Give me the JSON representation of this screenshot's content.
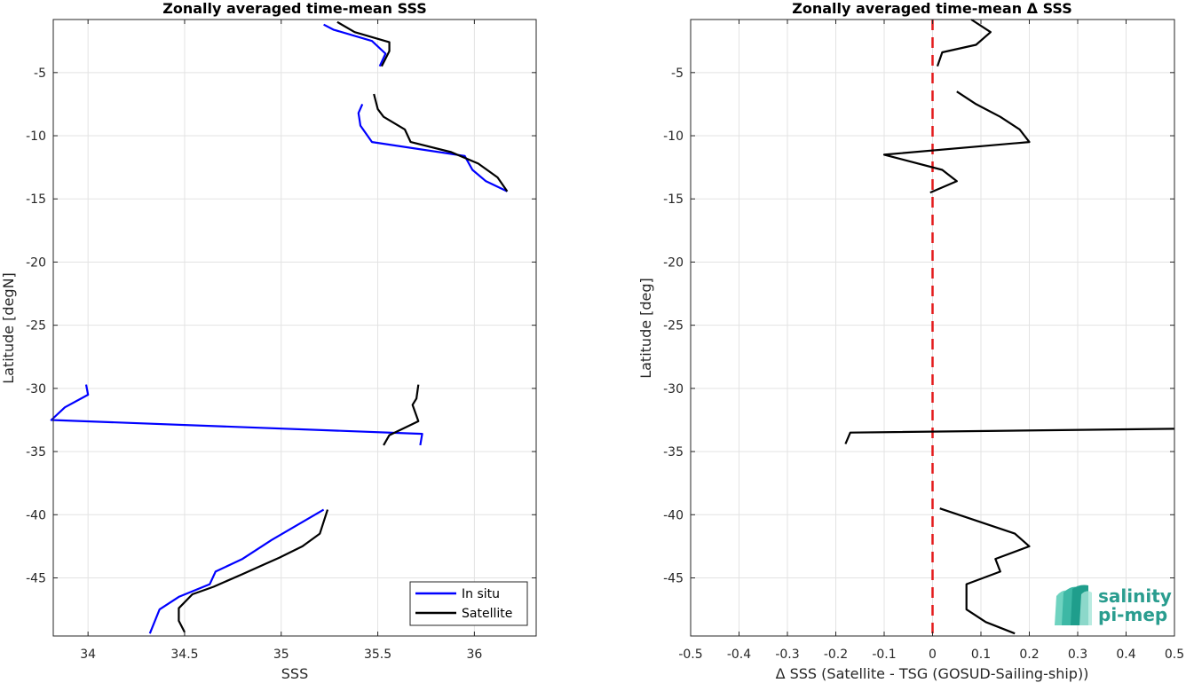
{
  "chart_data": [
    {
      "type": "line",
      "title": "Zonally averaged time-mean SSS",
      "xlabel": "SSS",
      "ylabel": "Latitude [degN]",
      "xlim": [
        33.82,
        36.32
      ],
      "ylim": [
        -49.6,
        -0.8
      ],
      "xticks": [
        34,
        34.5,
        35,
        35.5,
        36
      ],
      "xtick_labels": [
        "34",
        "34.5",
        "35",
        "35.5",
        "36"
      ],
      "yticks": [
        -5,
        -10,
        -15,
        -20,
        -25,
        -30,
        -35,
        -40,
        -45
      ],
      "ytick_labels": [
        "-5",
        "-10",
        "-15",
        "-20",
        "-25",
        "-30",
        "-35",
        "-40",
        "-45"
      ],
      "grid": true,
      "legend": "bottom-right",
      "series": [
        {
          "name": "In situ",
          "color": "#0000ff",
          "segments": [
            [
              [
                35.22,
                -1.2
              ],
              [
                35.27,
                -1.6
              ],
              [
                35.47,
                -2.5
              ],
              [
                35.54,
                -3.5
              ],
              [
                35.51,
                -4.5
              ]
            ],
            [
              [
                35.42,
                -7.5
              ],
              [
                35.4,
                -8.2
              ],
              [
                35.41,
                -9.2
              ],
              [
                35.47,
                -10.5
              ],
              [
                35.95,
                -11.6
              ],
              [
                35.99,
                -12.7
              ],
              [
                36.06,
                -13.6
              ],
              [
                36.17,
                -14.4
              ]
            ],
            [
              [
                33.99,
                -29.7
              ],
              [
                34.0,
                -30.5
              ],
              [
                33.88,
                -31.5
              ],
              [
                33.81,
                -32.5
              ],
              [
                35.73,
                -33.6
              ],
              [
                35.72,
                -34.5
              ]
            ],
            [
              [
                35.22,
                -39.6
              ],
              [
                34.95,
                -42
              ],
              [
                34.8,
                -43.5
              ],
              [
                34.66,
                -44.5
              ],
              [
                34.63,
                -45.5
              ],
              [
                34.47,
                -46.5
              ],
              [
                34.37,
                -47.5
              ],
              [
                34.32,
                -49.4
              ]
            ]
          ]
        },
        {
          "name": "Satellite",
          "color": "#000000",
          "segments": [
            [
              [
                35.29,
                -1.0
              ],
              [
                35.38,
                -1.8
              ],
              [
                35.56,
                -2.6
              ],
              [
                35.56,
                -3.3
              ],
              [
                35.52,
                -4.5
              ]
            ],
            [
              [
                35.48,
                -6.7
              ],
              [
                35.5,
                -7.9
              ],
              [
                35.53,
                -8.5
              ],
              [
                35.64,
                -9.5
              ],
              [
                35.67,
                -10.5
              ],
              [
                35.88,
                -11.3
              ],
              [
                36.02,
                -12.2
              ],
              [
                36.12,
                -13.3
              ],
              [
                36.17,
                -14.4
              ]
            ],
            [
              [
                35.71,
                -29.7
              ],
              [
                35.7,
                -30.8
              ],
              [
                35.68,
                -31.3
              ],
              [
                35.71,
                -32.6
              ],
              [
                35.56,
                -33.7
              ],
              [
                35.53,
                -34.5
              ]
            ],
            [
              [
                35.24,
                -39.6
              ],
              [
                35.2,
                -41.5
              ],
              [
                35.11,
                -42.5
              ],
              [
                34.99,
                -43.4
              ],
              [
                34.8,
                -44.7
              ],
              [
                34.65,
                -45.7
              ],
              [
                34.54,
                -46.3
              ],
              [
                34.47,
                -47.4
              ],
              [
                34.47,
                -48.4
              ],
              [
                34.5,
                -49.3
              ]
            ]
          ]
        }
      ]
    },
    {
      "type": "line",
      "title": "Zonally averaged time-mean Δ SSS",
      "xlabel": "Δ SSS (Satellite - TSG (GOSUD-Sailing-ship))",
      "ylabel": "Latitude [deg]",
      "xlim": [
        -0.5,
        0.5
      ],
      "ylim": [
        -49.6,
        -0.8
      ],
      "xticks": [
        -0.5,
        -0.4,
        -0.3,
        -0.2,
        -0.1,
        0,
        0.1,
        0.2,
        0.3,
        0.4,
        0.5
      ],
      "xtick_labels": [
        "-0.5",
        "-0.4",
        "-0.3",
        "-0.2",
        "-0.1",
        "0",
        "0.1",
        "0.2",
        "0.3",
        "0.4",
        "0.5"
      ],
      "yticks": [
        -5,
        -10,
        -15,
        -20,
        -25,
        -30,
        -35,
        -40,
        -45
      ],
      "ytick_labels": [
        "-5",
        "-10",
        "-15",
        "-20",
        "-25",
        "-30",
        "-35",
        "-40",
        "-45"
      ],
      "grid": true,
      "reference_line": {
        "x": 0,
        "color": "#e41a1c",
        "style": "dashed"
      },
      "series": [
        {
          "color": "#000000",
          "segments": [
            [
              [
                0.08,
                -0.8
              ],
              [
                0.12,
                -1.8
              ],
              [
                0.09,
                -2.8
              ],
              [
                0.02,
                -3.4
              ],
              [
                0.01,
                -4.5
              ]
            ],
            [
              [
                0.05,
                -6.5
              ],
              [
                0.09,
                -7.5
              ],
              [
                0.14,
                -8.5
              ],
              [
                0.18,
                -9.5
              ],
              [
                0.2,
                -10.5
              ],
              [
                -0.1,
                -11.5
              ],
              [
                0.02,
                -12.7
              ],
              [
                0.05,
                -13.6
              ],
              [
                -0.005,
                -14.5
              ]
            ],
            [
              [
                -0.18,
                -34.4
              ],
              [
                -0.17,
                -33.5
              ],
              [
                0.5,
                -33.2
              ]
            ],
            [
              [
                0.015,
                -39.5
              ],
              [
                0.17,
                -41.5
              ],
              [
                0.2,
                -42.5
              ],
              [
                0.13,
                -43.5
              ],
              [
                0.14,
                -44.5
              ],
              [
                0.07,
                -45.5
              ],
              [
                0.07,
                -47.5
              ],
              [
                0.11,
                -48.5
              ],
              [
                0.17,
                -49.4
              ]
            ]
          ]
        }
      ]
    }
  ],
  "logo": {
    "line1": "salinity",
    "line2": "pi-mep"
  }
}
